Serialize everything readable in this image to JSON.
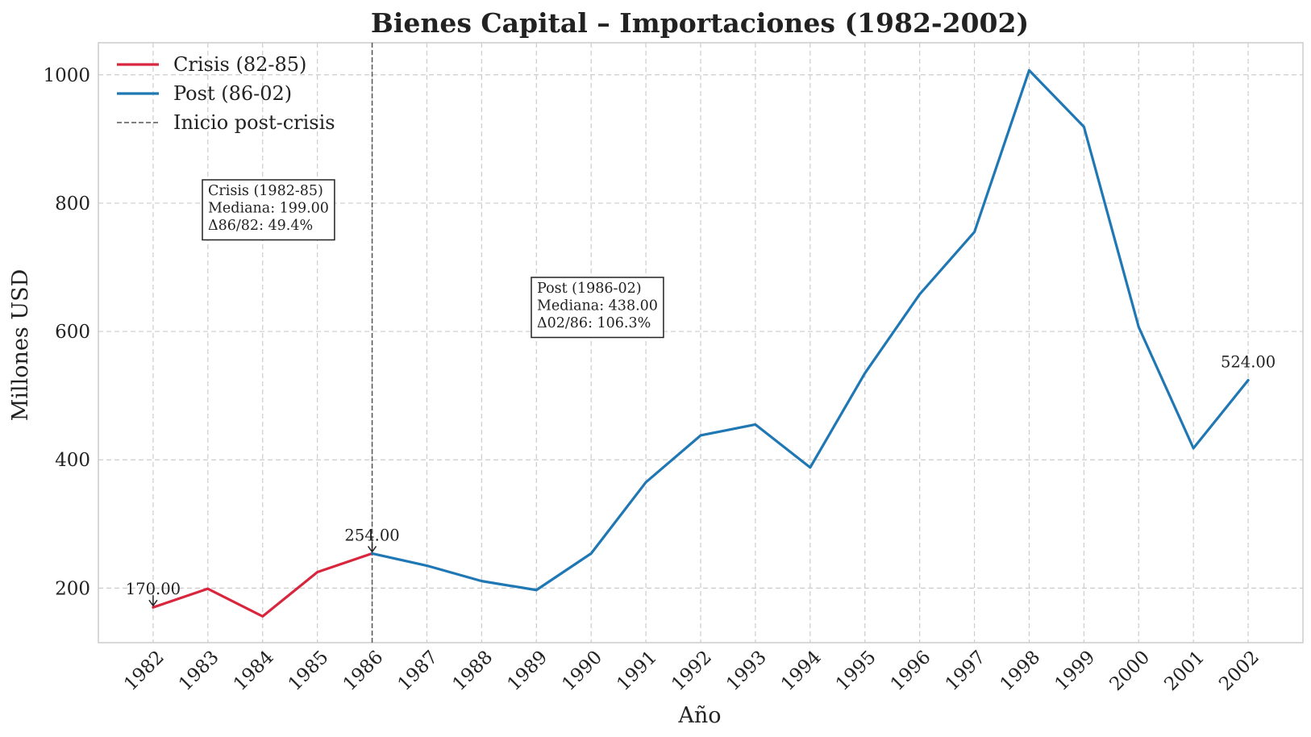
{
  "chart_data": {
    "type": "line",
    "title": "Bienes Capital – Importaciones (1982-2002)",
    "xlabel": "Año",
    "ylabel": "Millones USD",
    "x": [
      1982,
      1983,
      1984,
      1985,
      1986,
      1987,
      1988,
      1989,
      1990,
      1991,
      1992,
      1993,
      1994,
      1995,
      1996,
      1997,
      1998,
      1999,
      2000,
      2001,
      2002
    ],
    "xticks": [
      "1982",
      "1983",
      "1984",
      "1985",
      "1986",
      "1987",
      "1988",
      "1989",
      "1990",
      "1991",
      "1992",
      "1993",
      "1994",
      "1995",
      "1996",
      "1997",
      "1998",
      "1999",
      "2000",
      "2001",
      "2002"
    ],
    "yticks": [
      "200",
      "400",
      "600",
      "800",
      "1000"
    ],
    "ylim": [
      115,
      1050
    ],
    "xlim": [
      1981.0,
      2003.0
    ],
    "grid": true,
    "legend_position": "top-left",
    "series": [
      {
        "name": "Crisis (82-85)",
        "color": "#d7263d",
        "x": [
          1982,
          1983,
          1984,
          1985,
          1986
        ],
        "y": [
          170,
          199,
          156,
          225,
          254
        ]
      },
      {
        "name": "Post (86-02)",
        "color": "#1f77b4",
        "x": [
          1986,
          1987,
          1988,
          1989,
          1990,
          1991,
          1992,
          1993,
          1994,
          1995,
          1996,
          1997,
          1998,
          1999,
          2000,
          2001,
          2002
        ],
        "y": [
          254,
          235,
          211,
          197,
          254,
          365,
          438,
          455,
          388,
          535,
          658,
          755,
          1007,
          919,
          607,
          418,
          524
        ]
      }
    ],
    "vline": {
      "x": 1986,
      "label": "Inicio post-crisis",
      "color": "#555555"
    },
    "point_labels": [
      {
        "x": 1982,
        "y": 170,
        "text": "170.00",
        "arrow": true
      },
      {
        "x": 1986,
        "y": 254,
        "text": "254.00",
        "arrow": true
      },
      {
        "x": 2002,
        "y": 524,
        "text": "524.00",
        "arrow": false
      }
    ],
    "notes": [
      {
        "lines": [
          "Crisis (1982-85)",
          "Mediana: 199.00",
          "Δ86/82: 49.4%"
        ]
      },
      {
        "lines": [
          "Post (1986-02)",
          "Mediana: 438.00",
          "Δ02/86: 106.3%"
        ]
      }
    ]
  }
}
